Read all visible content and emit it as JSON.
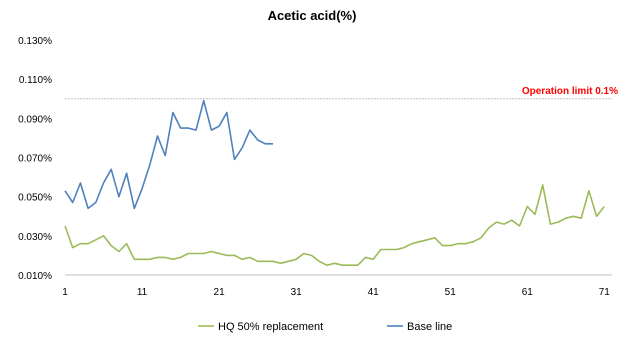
{
  "chart_data": {
    "type": "line",
    "title": "Acetic acid(%)",
    "xlabel": "",
    "ylabel": "",
    "xlim": [
      1,
      72
    ],
    "ylim": [
      0.01,
      0.13
    ],
    "x_ticks": [
      1,
      11,
      21,
      31,
      41,
      51,
      61,
      71
    ],
    "y_ticks": [
      "0.010%",
      "0.030%",
      "0.050%",
      "0.070%",
      "0.090%",
      "0.110%",
      "0.130%"
    ],
    "y_tick_values": [
      0.01,
      0.03,
      0.05,
      0.07,
      0.09,
      0.11,
      0.13
    ],
    "grid": false,
    "legend_position": "bottom",
    "reference_line": {
      "label": "Operation limit 0.1%",
      "value": 0.1,
      "color": "#ff0000"
    },
    "series": [
      {
        "name": "HQ 50% replacement",
        "color": "#9bbb59",
        "x": [
          1,
          2,
          3,
          4,
          5,
          6,
          7,
          8,
          9,
          10,
          11,
          12,
          13,
          14,
          15,
          16,
          17,
          18,
          19,
          20,
          21,
          22,
          23,
          24,
          25,
          26,
          27,
          28,
          29,
          30,
          31,
          32,
          33,
          34,
          35,
          36,
          37,
          38,
          39,
          40,
          41,
          42,
          43,
          44,
          45,
          46,
          47,
          48,
          49,
          50,
          51,
          52,
          53,
          54,
          55,
          56,
          57,
          58,
          59,
          60,
          61,
          62,
          63,
          64,
          65,
          66,
          67,
          68,
          69,
          70,
          71
        ],
        "values": [
          0.035,
          0.024,
          0.026,
          0.026,
          0.028,
          0.03,
          0.025,
          0.022,
          0.026,
          0.018,
          0.018,
          0.018,
          0.019,
          0.019,
          0.018,
          0.019,
          0.021,
          0.021,
          0.021,
          0.022,
          0.021,
          0.02,
          0.02,
          0.018,
          0.019,
          0.017,
          0.017,
          0.017,
          0.016,
          0.017,
          0.018,
          0.021,
          0.02,
          0.017,
          0.015,
          0.016,
          0.015,
          0.015,
          0.015,
          0.019,
          0.018,
          0.023,
          0.023,
          0.023,
          0.024,
          0.026,
          0.027,
          0.028,
          0.029,
          0.025,
          0.025,
          0.026,
          0.026,
          0.027,
          0.029,
          0.034,
          0.037,
          0.036,
          0.038,
          0.035,
          0.045,
          0.041,
          0.056,
          0.036,
          0.037,
          0.039,
          0.04,
          0.039,
          0.053,
          0.04,
          0.045
        ]
      },
      {
        "name": "Base line",
        "color": "#4f81bd",
        "x": [
          1,
          2,
          3,
          4,
          5,
          6,
          7,
          8,
          9,
          10,
          11,
          12,
          13,
          14,
          15,
          16,
          17,
          18,
          19,
          20,
          21,
          22,
          23,
          24,
          25,
          26,
          27,
          28
        ],
        "values": [
          0.053,
          0.047,
          0.057,
          0.044,
          0.047,
          0.057,
          0.064,
          0.05,
          0.062,
          0.044,
          0.054,
          0.066,
          0.081,
          0.071,
          0.093,
          0.085,
          0.085,
          0.084,
          0.099,
          0.084,
          0.086,
          0.093,
          0.069,
          0.075,
          0.084,
          0.079,
          0.077,
          0.077
        ]
      }
    ]
  }
}
